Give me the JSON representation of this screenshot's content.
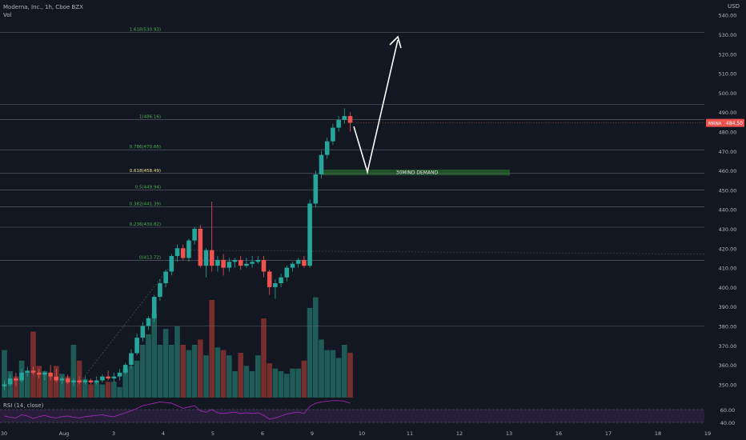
{
  "header": {
    "symbol_line": "Moderna, Inc., 1h, Cboe BZX",
    "vol_label": "Vol",
    "currency": "USD"
  },
  "rsi": {
    "label": "RSI (14, close)",
    "levels": [
      "60.00",
      "40.00"
    ]
  },
  "colors": {
    "background": "#131722",
    "bull": "#26a69a",
    "bear": "#ef5350",
    "fib_line": "#787b86",
    "fib_label": "#4caf50",
    "fib_618_label": "#f0e68c",
    "demand_zone": "#2e7d32",
    "rsi_line": "#9c27b0",
    "rsi_band": "#2a1f3d",
    "price_tag": "#ef5350"
  },
  "chart_data": {
    "type": "candlestick",
    "title": "",
    "symbol": "MRNA",
    "last_price": "484.50",
    "y_ticks": [
      "540.00",
      "530.00",
      "520.00",
      "510.00",
      "500.00",
      "490.00",
      "480.00",
      "470.00",
      "460.00",
      "450.00",
      "440.00",
      "430.00",
      "420.00",
      "410.00",
      "400.00",
      "390.00",
      "380.00",
      "370.00",
      "360.00",
      "350.00"
    ],
    "x_ticks": [
      "30",
      "Aug",
      "3",
      "4",
      "5",
      "6",
      "9",
      "10",
      "11",
      "12",
      "13",
      "16",
      "17",
      "18",
      "19"
    ],
    "fib_levels": [
      {
        "ratio": "1.618",
        "price": 530.93,
        "label": "1.618(530.93)"
      },
      {
        "ratio": "1",
        "price": 486.16,
        "label": "1(486.16)"
      },
      {
        "ratio": "0.786",
        "price": 470.66,
        "label": "0.786(470.66)"
      },
      {
        "ratio": "0.618",
        "price": 458.49,
        "label": "0.618(458.49)"
      },
      {
        "ratio": "0.5",
        "price": 449.94,
        "label": "0.5(449.94)"
      },
      {
        "ratio": "0.382",
        "price": 441.39,
        "label": "0.382(441.39)"
      },
      {
        "ratio": "0.236",
        "price": 430.82,
        "label": "0.236(430.82)"
      },
      {
        "ratio": "0",
        "price": 413.72,
        "label": "0(413.72)"
      }
    ],
    "demand_zone": {
      "label": "30MIND DEMAND",
      "low": 457.5,
      "high": 460.5
    },
    "candles": [
      {
        "o": 349,
        "h": 352,
        "l": 347,
        "c": 350
      },
      {
        "o": 350,
        "h": 355,
        "l": 349,
        "c": 353
      },
      {
        "o": 353,
        "h": 356,
        "l": 349,
        "c": 352
      },
      {
        "o": 352,
        "h": 358,
        "l": 351,
        "c": 356
      },
      {
        "o": 356,
        "h": 359,
        "l": 354,
        "c": 357
      },
      {
        "o": 357,
        "h": 359,
        "l": 355,
        "c": 356
      },
      {
        "o": 356,
        "h": 358,
        "l": 353,
        "c": 355
      },
      {
        "o": 355,
        "h": 357,
        "l": 352,
        "c": 356
      },
      {
        "o": 356,
        "h": 360,
        "l": 352,
        "c": 354
      },
      {
        "o": 354,
        "h": 358,
        "l": 351,
        "c": 352
      },
      {
        "o": 352,
        "h": 354,
        "l": 350,
        "c": 353
      },
      {
        "o": 353,
        "h": 355,
        "l": 350,
        "c": 351
      },
      {
        "o": 351,
        "h": 353,
        "l": 349,
        "c": 352
      },
      {
        "o": 352,
        "h": 354,
        "l": 350,
        "c": 351
      },
      {
        "o": 351,
        "h": 354,
        "l": 350,
        "c": 352
      },
      {
        "o": 352,
        "h": 353,
        "l": 350,
        "c": 351
      },
      {
        "o": 351,
        "h": 354,
        "l": 350,
        "c": 352
      },
      {
        "o": 352,
        "h": 355,
        "l": 351,
        "c": 354
      },
      {
        "o": 354,
        "h": 357,
        "l": 352,
        "c": 353
      },
      {
        "o": 353,
        "h": 356,
        "l": 351,
        "c": 354
      },
      {
        "o": 354,
        "h": 358,
        "l": 352,
        "c": 356
      },
      {
        "o": 356,
        "h": 361,
        "l": 355,
        "c": 360
      },
      {
        "o": 360,
        "h": 368,
        "l": 358,
        "c": 366
      },
      {
        "o": 366,
        "h": 376,
        "l": 365,
        "c": 374
      },
      {
        "o": 374,
        "h": 382,
        "l": 372,
        "c": 380
      },
      {
        "o": 380,
        "h": 385,
        "l": 378,
        "c": 384
      },
      {
        "o": 384,
        "h": 396,
        "l": 382,
        "c": 395
      },
      {
        "o": 395,
        "h": 404,
        "l": 393,
        "c": 402
      },
      {
        "o": 402,
        "h": 409,
        "l": 400,
        "c": 408
      },
      {
        "o": 408,
        "h": 417,
        "l": 406,
        "c": 416
      },
      {
        "o": 416,
        "h": 422,
        "l": 413,
        "c": 420
      },
      {
        "o": 420,
        "h": 422,
        "l": 414,
        "c": 415
      },
      {
        "o": 415,
        "h": 425,
        "l": 413,
        "c": 424
      },
      {
        "o": 424,
        "h": 431,
        "l": 422,
        "c": 430
      },
      {
        "o": 430,
        "h": 432,
        "l": 410,
        "c": 411
      },
      {
        "o": 411,
        "h": 420,
        "l": 405,
        "c": 419
      },
      {
        "o": 419,
        "h": 444,
        "l": 408,
        "c": 411
      },
      {
        "o": 411,
        "h": 416,
        "l": 408,
        "c": 414
      },
      {
        "o": 414,
        "h": 417,
        "l": 406,
        "c": 410
      },
      {
        "o": 410,
        "h": 415,
        "l": 408,
        "c": 413
      },
      {
        "o": 413,
        "h": 415,
        "l": 410,
        "c": 414
      },
      {
        "o": 414,
        "h": 416,
        "l": 409,
        "c": 411
      },
      {
        "o": 411,
        "h": 415,
        "l": 410,
        "c": 412
      },
      {
        "o": 412,
        "h": 416,
        "l": 410,
        "c": 413
      },
      {
        "o": 413,
        "h": 416,
        "l": 412,
        "c": 414
      },
      {
        "o": 414,
        "h": 416,
        "l": 405,
        "c": 408
      },
      {
        "o": 408,
        "h": 409,
        "l": 396,
        "c": 400
      },
      {
        "o": 400,
        "h": 404,
        "l": 394,
        "c": 402
      },
      {
        "o": 402,
        "h": 407,
        "l": 400,
        "c": 405
      },
      {
        "o": 405,
        "h": 411,
        "l": 403,
        "c": 410
      },
      {
        "o": 410,
        "h": 413,
        "l": 408,
        "c": 412
      },
      {
        "o": 412,
        "h": 415,
        "l": 410,
        "c": 414
      },
      {
        "o": 414,
        "h": 416,
        "l": 410,
        "c": 411
      },
      {
        "o": 411,
        "h": 445,
        "l": 410,
        "c": 443
      },
      {
        "o": 443,
        "h": 460,
        "l": 441,
        "c": 458
      },
      {
        "o": 458,
        "h": 470,
        "l": 456,
        "c": 468
      },
      {
        "o": 468,
        "h": 477,
        "l": 466,
        "c": 475
      },
      {
        "o": 475,
        "h": 484,
        "l": 473,
        "c": 482
      },
      {
        "o": 482,
        "h": 488,
        "l": 480,
        "c": 486
      },
      {
        "o": 486,
        "h": 492,
        "l": 484,
        "c": 488
      },
      {
        "o": 488,
        "h": 490,
        "l": 480,
        "c": 484.5
      }
    ],
    "volume": [
      18,
      10,
      8,
      14,
      10,
      25,
      12,
      10,
      8,
      12,
      9,
      8,
      20,
      14,
      7,
      5,
      6,
      5,
      6,
      6,
      4,
      11,
      12,
      14,
      20,
      24,
      32,
      20,
      26,
      20,
      27,
      20,
      18,
      20,
      22,
      16,
      37,
      19,
      18,
      16,
      10,
      17,
      12,
      10,
      16,
      30,
      13,
      11,
      10,
      9,
      11,
      11,
      14,
      34,
      38,
      22,
      18,
      18,
      15,
      20,
      17
    ],
    "rsi_values": [
      50,
      48,
      47,
      52,
      50,
      46,
      49,
      51,
      48,
      47,
      49,
      50,
      48,
      47,
      49,
      50,
      51,
      52,
      50,
      49,
      52,
      55,
      58,
      62,
      66,
      68,
      70,
      72,
      71,
      70,
      66,
      62,
      64,
      66,
      58,
      56,
      60,
      55,
      54,
      55,
      56,
      54,
      55,
      54,
      55,
      51,
      45,
      47,
      50,
      53,
      55,
      56,
      54,
      65,
      70,
      72,
      73,
      74,
      74,
      73,
      70
    ]
  }
}
